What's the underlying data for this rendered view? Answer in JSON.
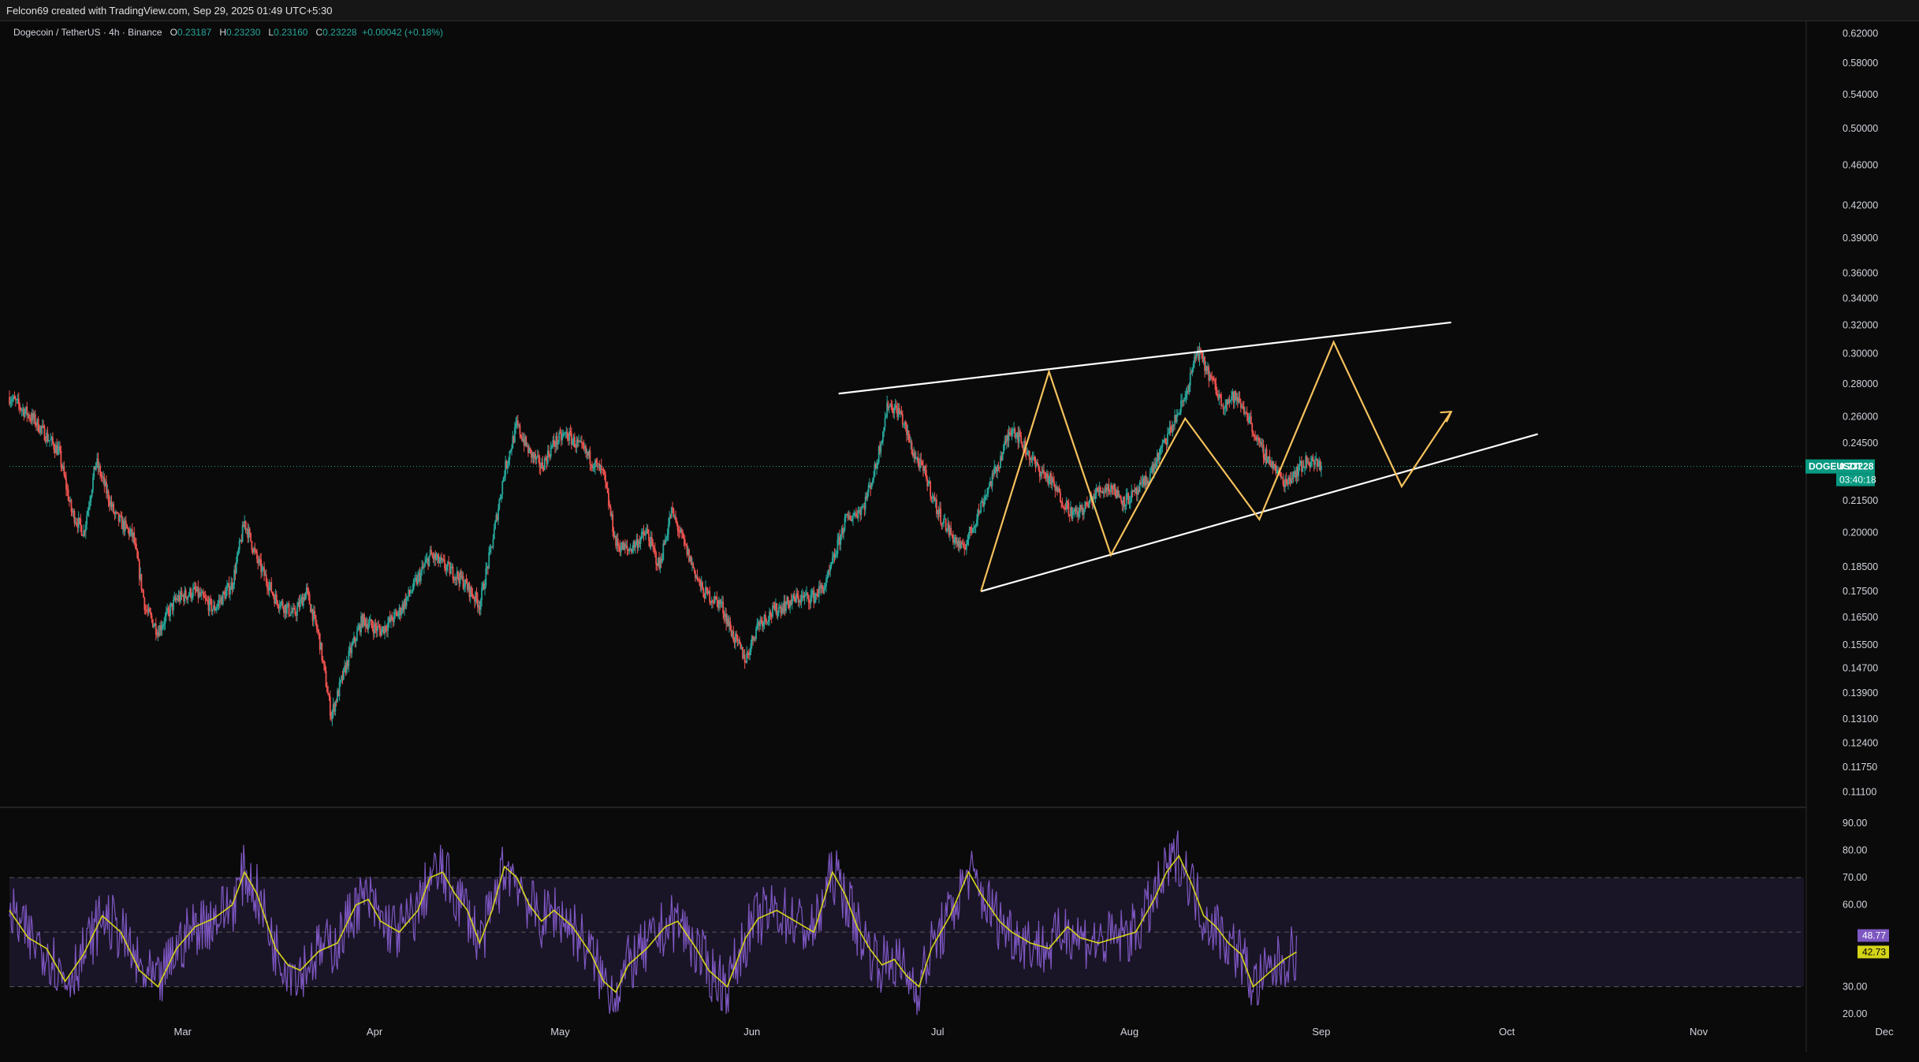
{
  "header": {
    "credit": "Felcon69 created with TradingView.com, Sep 29, 2025 01:49 UTC+5:30"
  },
  "legend": {
    "symbol": "Dogecoin / TetherUS · 4h · Binance",
    "o_label": "O",
    "o_value": "0.23187",
    "h_label": "H",
    "h_value": "0.23230",
    "l_label": "L",
    "l_value": "0.23160",
    "c_label": "C",
    "c_value": "0.23228",
    "change": "+0.00042 (+0.18%)"
  },
  "price_badge": {
    "ticker": "DOGEUSDT",
    "price": "0.23228",
    "countdown": "03:40:18",
    "color": "#089981"
  },
  "rsi_badges": {
    "rsi": "48.77",
    "rsi_color": "#7e57c2",
    "ma": "42.73",
    "ma_color": "#d4d419"
  },
  "colors": {
    "up": "#26a69a",
    "down": "#ef5350",
    "trendline": "#ffffff",
    "pattern": "#f5c15c",
    "rsi_line": "#7e57c2",
    "rsi_ma": "#d4d419",
    "rsi_band": "#1a1526"
  },
  "chart_data": [
    {
      "type": "candlestick",
      "title": "Dogecoin / TetherUS · 4h · Binance",
      "scale": "log",
      "ylim": [
        0.108,
        0.625
      ],
      "y_ticks": [
        "0.62000",
        "0.58000",
        "0.54000",
        "0.50000",
        "0.46000",
        "0.42000",
        "0.39000",
        "0.36000",
        "0.34000",
        "0.32000",
        "0.30000",
        "0.28000",
        "0.26000",
        "0.24500",
        "0.21500",
        "0.20000",
        "0.18500",
        "0.17500",
        "0.16500",
        "0.15500",
        "0.14700",
        "0.13900",
        "0.13100",
        "0.12400",
        "0.11750",
        "0.11100"
      ],
      "x_ticks": [
        "Mar",
        "Apr",
        "May",
        "Jun",
        "Jul",
        "Aug",
        "Sep",
        "Oct",
        "Nov",
        "Dec"
      ],
      "x_range_days": [
        0,
        290
      ],
      "x_tick_days": [
        28,
        59,
        89,
        120,
        150,
        181,
        212,
        242,
        273,
        303
      ],
      "close_path": [
        [
          0,
          0.272
        ],
        [
          4,
          0.258
        ],
        [
          8,
          0.24
        ],
        [
          10,
          0.21
        ],
        [
          12,
          0.2
        ],
        [
          14,
          0.235
        ],
        [
          17,
          0.208
        ],
        [
          20,
          0.198
        ],
        [
          22,
          0.168
        ],
        [
          24,
          0.16
        ],
        [
          27,
          0.172
        ],
        [
          30,
          0.175
        ],
        [
          33,
          0.168
        ],
        [
          36,
          0.178
        ],
        [
          38,
          0.205
        ],
        [
          40,
          0.188
        ],
        [
          43,
          0.172
        ],
        [
          46,
          0.166
        ],
        [
          48,
          0.175
        ],
        [
          50,
          0.158
        ],
        [
          52,
          0.132
        ],
        [
          55,
          0.152
        ],
        [
          57,
          0.164
        ],
        [
          60,
          0.16
        ],
        [
          63,
          0.167
        ],
        [
          66,
          0.18
        ],
        [
          68,
          0.19
        ],
        [
          70,
          0.186
        ],
        [
          73,
          0.18
        ],
        [
          76,
          0.17
        ],
        [
          78,
          0.195
        ],
        [
          80,
          0.23
        ],
        [
          82,
          0.255
        ],
        [
          84,
          0.24
        ],
        [
          86,
          0.232
        ],
        [
          88,
          0.245
        ],
        [
          90,
          0.25
        ],
        [
          93,
          0.24
        ],
        [
          96,
          0.228
        ],
        [
          98,
          0.195
        ],
        [
          100,
          0.192
        ],
        [
          103,
          0.2
        ],
        [
          105,
          0.185
        ],
        [
          107,
          0.21
        ],
        [
          109,
          0.195
        ],
        [
          112,
          0.175
        ],
        [
          115,
          0.17
        ],
        [
          117,
          0.158
        ],
        [
          119,
          0.15
        ],
        [
          121,
          0.163
        ],
        [
          124,
          0.168
        ],
        [
          127,
          0.172
        ],
        [
          130,
          0.173
        ],
        [
          132,
          0.178
        ],
        [
          135,
          0.205
        ],
        [
          138,
          0.212
        ],
        [
          140,
          0.232
        ],
        [
          142,
          0.268
        ],
        [
          144,
          0.262
        ],
        [
          146,
          0.24
        ],
        [
          148,
          0.228
        ],
        [
          150,
          0.21
        ],
        [
          152,
          0.2
        ],
        [
          154,
          0.192
        ],
        [
          156,
          0.205
        ],
        [
          158,
          0.22
        ],
        [
          160,
          0.235
        ],
        [
          162,
          0.255
        ],
        [
          164,
          0.243
        ],
        [
          166,
          0.232
        ],
        [
          168,
          0.226
        ],
        [
          170,
          0.216
        ],
        [
          172,
          0.208
        ],
        [
          174,
          0.212
        ],
        [
          176,
          0.22
        ],
        [
          178,
          0.222
        ],
        [
          180,
          0.215
        ],
        [
          182,
          0.218
        ],
        [
          184,
          0.226
        ],
        [
          186,
          0.24
        ],
        [
          188,
          0.255
        ],
        [
          190,
          0.272
        ],
        [
          192,
          0.302
        ],
        [
          194,
          0.285
        ],
        [
          196,
          0.268
        ],
        [
          198,
          0.272
        ],
        [
          200,
          0.262
        ],
        [
          202,
          0.243
        ],
        [
          204,
          0.234
        ],
        [
          206,
          0.224
        ],
        [
          208,
          0.23
        ],
        [
          210,
          0.236
        ],
        [
          212,
          0.232
        ]
      ],
      "last_close": 0.23228
    },
    {
      "type": "line",
      "name": "RSI",
      "ylim": [
        16,
        94
      ],
      "y_ticks": [
        "90.00",
        "80.00",
        "70.00",
        "60.00",
        "30.00",
        "20.00"
      ],
      "band": [
        30,
        70
      ],
      "midline": 50,
      "rsi_last": 48.77,
      "ma_last": 42.73,
      "ma_path": [
        [
          0,
          58
        ],
        [
          3,
          48
        ],
        [
          6,
          44
        ],
        [
          9,
          32
        ],
        [
          12,
          42
        ],
        [
          15,
          56
        ],
        [
          18,
          50
        ],
        [
          21,
          36
        ],
        [
          24,
          30
        ],
        [
          27,
          44
        ],
        [
          30,
          52
        ],
        [
          33,
          55
        ],
        [
          36,
          60
        ],
        [
          38,
          72
        ],
        [
          40,
          64
        ],
        [
          43,
          44
        ],
        [
          45,
          38
        ],
        [
          47,
          36
        ],
        [
          50,
          43
        ],
        [
          53,
          46
        ],
        [
          56,
          60
        ],
        [
          58,
          62
        ],
        [
          60,
          54
        ],
        [
          63,
          50
        ],
        [
          66,
          58
        ],
        [
          68,
          70
        ],
        [
          70,
          72
        ],
        [
          72,
          64
        ],
        [
          74,
          58
        ],
        [
          76,
          46
        ],
        [
          78,
          58
        ],
        [
          80,
          74
        ],
        [
          82,
          70
        ],
        [
          84,
          60
        ],
        [
          86,
          54
        ],
        [
          88,
          58
        ],
        [
          91,
          52
        ],
        [
          94,
          42
        ],
        [
          96,
          32
        ],
        [
          98,
          28
        ],
        [
          100,
          38
        ],
        [
          103,
          44
        ],
        [
          106,
          52
        ],
        [
          108,
          54
        ],
        [
          111,
          44
        ],
        [
          113,
          36
        ],
        [
          116,
          30
        ],
        [
          119,
          48
        ],
        [
          121,
          55
        ],
        [
          124,
          58
        ],
        [
          127,
          54
        ],
        [
          130,
          50
        ],
        [
          133,
          72
        ],
        [
          135,
          64
        ],
        [
          137,
          52
        ],
        [
          139,
          44
        ],
        [
          141,
          38
        ],
        [
          143,
          40
        ],
        [
          145,
          34
        ],
        [
          147,
          30
        ],
        [
          149,
          44
        ],
        [
          152,
          56
        ],
        [
          155,
          72
        ],
        [
          157,
          64
        ],
        [
          160,
          54
        ],
        [
          162,
          50
        ],
        [
          165,
          46
        ],
        [
          168,
          44
        ],
        [
          171,
          52
        ],
        [
          173,
          48
        ],
        [
          176,
          46
        ],
        [
          179,
          48
        ],
        [
          182,
          50
        ],
        [
          185,
          62
        ],
        [
          187,
          72
        ],
        [
          189,
          78
        ],
        [
          191,
          68
        ],
        [
          193,
          56
        ],
        [
          195,
          52
        ],
        [
          197,
          46
        ],
        [
          199,
          42
        ],
        [
          201,
          30
        ],
        [
          203,
          34
        ],
        [
          206,
          40
        ],
        [
          208,
          42.73
        ]
      ]
    }
  ]
}
